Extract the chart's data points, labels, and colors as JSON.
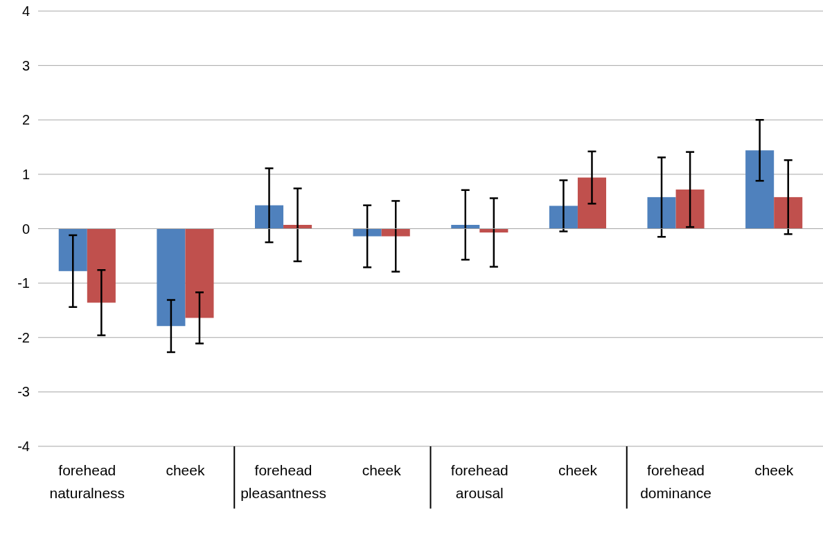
{
  "chart_data": {
    "type": "bar",
    "categories": [
      "forehead",
      "cheek",
      "forehead",
      "cheek",
      "forehead",
      "cheek",
      "forehead",
      "cheek"
    ],
    "annotations": [
      "naturalness",
      "pleasantness",
      "arousal",
      "dominance"
    ],
    "series": [
      {
        "color": "#4f81bd",
        "values": [
          -0.78,
          -1.79,
          0.43,
          -0.14,
          0.07,
          0.42,
          0.58,
          1.44
        ],
        "errors": [
          0.66,
          0.48,
          0.68,
          0.57,
          0.64,
          0.47,
          0.73,
          0.56
        ]
      },
      {
        "color": "#c0504d",
        "values": [
          -1.36,
          -1.64,
          0.07,
          -0.14,
          -0.07,
          0.94,
          0.72,
          0.58
        ],
        "errors": [
          0.6,
          0.47,
          0.67,
          0.65,
          0.63,
          0.48,
          0.69,
          0.68
        ]
      }
    ],
    "ylim": [
      -4,
      4
    ],
    "yticks": [
      -4,
      -3,
      -2,
      -1,
      0,
      1,
      2,
      3,
      4
    ],
    "grid": "y"
  }
}
